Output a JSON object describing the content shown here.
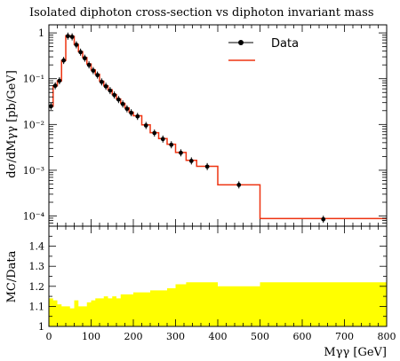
{
  "chart_data": {
    "type": "line",
    "title": "Isolated diphoton cross-section vs diphoton invariant mass",
    "xlabel": "Mγγ [GeV]",
    "ylabel": "dσ/dMγγ [pb/GeV]",
    "ratio_ylabel": "MC/Data",
    "xlim": [
      0,
      800
    ],
    "ylim": [
      6e-05,
      1.5
    ],
    "yscale": "log",
    "ratio_ylim": [
      1.0,
      1.5
    ],
    "x_ticks": [
      "0",
      "100",
      "200",
      "300",
      "400",
      "500",
      "600",
      "700",
      "800"
    ],
    "y_ticks": [
      "1",
      "10⁻¹",
      "10⁻²",
      "10⁻³",
      "10⁻⁴"
    ],
    "ratio_ticks": [
      "1",
      "1.1",
      "1.2",
      "1.3",
      "1.4"
    ],
    "legend_position": "top-right",
    "bin_edges": [
      0,
      10,
      20,
      30,
      40,
      50,
      60,
      70,
      80,
      90,
      100,
      110,
      120,
      130,
      140,
      150,
      160,
      170,
      180,
      190,
      200,
      220,
      240,
      260,
      280,
      300,
      325,
      350,
      400,
      500,
      800
    ],
    "series": [
      {
        "name": "Data",
        "kind": "points",
        "color": "#000000",
        "x": [
          5,
          15,
          25,
          35,
          45,
          55,
          65,
          75,
          85,
          95,
          105,
          115,
          125,
          135,
          145,
          155,
          165,
          175,
          185,
          195,
          210,
          230,
          250,
          270,
          290,
          312.5,
          337.5,
          375,
          450,
          650
        ],
        "values": [
          0.025,
          0.07,
          0.09,
          0.25,
          0.85,
          0.82,
          0.55,
          0.38,
          0.28,
          0.2,
          0.15,
          0.12,
          0.085,
          0.068,
          0.055,
          0.044,
          0.035,
          0.028,
          0.022,
          0.018,
          0.015,
          0.0095,
          0.0065,
          0.0048,
          0.0036,
          0.0024,
          0.0016,
          0.0012,
          0.00048,
          8.5e-05
        ]
      },
      {
        "name": "",
        "kind": "histogram",
        "color": "#ee3311",
        "values": [
          0.025,
          0.07,
          0.09,
          0.25,
          0.87,
          0.84,
          0.56,
          0.39,
          0.29,
          0.21,
          0.155,
          0.125,
          0.088,
          0.07,
          0.057,
          0.045,
          0.036,
          0.029,
          0.023,
          0.0185,
          0.0155,
          0.0098,
          0.0066,
          0.0049,
          0.0037,
          0.00245,
          0.00165,
          0.00122,
          0.00048,
          8.8e-05
        ]
      }
    ],
    "ratio": {
      "fill_color": "#ffff00",
      "values": [
        1.14,
        1.13,
        1.11,
        1.1,
        1.1,
        1.09,
        1.13,
        1.1,
        1.1,
        1.12,
        1.13,
        1.14,
        1.14,
        1.15,
        1.14,
        1.15,
        1.14,
        1.16,
        1.16,
        1.16,
        1.17,
        1.17,
        1.18,
        1.18,
        1.19,
        1.21,
        1.22,
        1.22,
        1.2,
        1.22
      ]
    }
  }
}
